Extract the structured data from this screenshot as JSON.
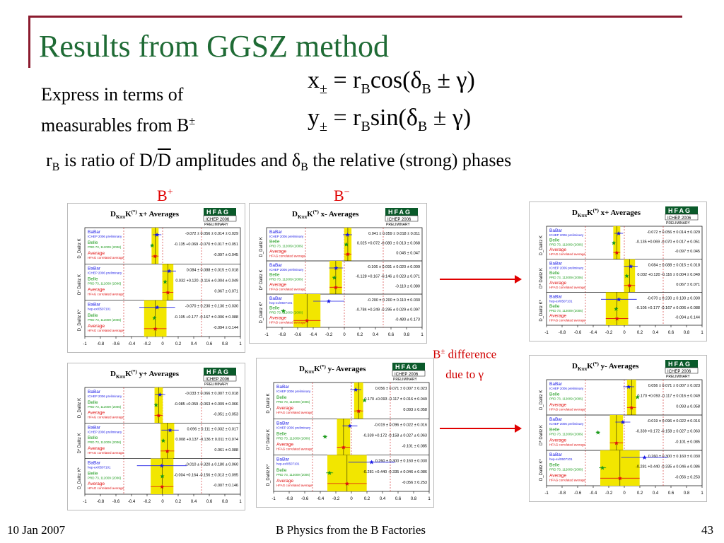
{
  "slide": {
    "title": "Results from GGSZ method",
    "eq_x": "x± = r_B cos(δ_B ± γ)",
    "eq_y": "y± = r_B sin(δ_B ± γ)",
    "express_line1": "Express in terms of",
    "express_line2": "measurables from B",
    "express_sup": "±",
    "ratio_r": "r",
    "ratio_sub_b": "B",
    "ratio_mid": " is ratio of D/",
    "ratio_dbar": "D",
    "ratio_mid2": " amplitudes and δ",
    "ratio_sub_b2": "B",
    "ratio_end": " the relative (strong) phases",
    "bplus_label": "B",
    "bplus_sup": "+",
    "bminus_label": "B",
    "bminus_sup": "−",
    "diff_line1": "B",
    "diff_sup": "±",
    "diff_line1_end": " difference",
    "diff_line2": "due to γ"
  },
  "footer": {
    "date": "10 Jan 2007",
    "center": "B Physics from the B Factories",
    "page": "43"
  },
  "colors": {
    "title_green": "#1f6b35",
    "rule_red": "#8b1b2e",
    "label_red": "#e00000",
    "band_yellow": "#f2e600",
    "babar_blue": "#1a1ae6",
    "belle_green": "#1a9a1a",
    "average_red": "#e01010"
  },
  "panels": [
    {
      "id": "xplus-top",
      "title": "x+ Averages",
      "rows": [
        {
          "mode": "D_Dalitz K",
          "babar": "-0.072 ± 0.056 ± 0.014 ± 0.029",
          "belle": "-0.135 +0.069 -0.070 ± 0.017 ± 0.051",
          "avg": "-0.097 ± 0.045"
        },
        {
          "mode": "D* Dalitz K",
          "babar": "0.084 ± 0.088 ± 0.015 ± 0.018",
          "belle": "0.032 +0.120 -0.116 ± 0.004 ± 0.049",
          "avg": "0.067 ± 0.071"
        },
        {
          "mode": "D_Dalitz K*",
          "babar": "-0.070 ± 0.230 ± 0.130 ± 0.030",
          "belle": "-0.105 +0.177 -0.167 ± 0.006 ± 0.088",
          "avg": "-0.094 ± 0.144"
        }
      ]
    },
    {
      "id": "xminus-top",
      "title": "x- Averages",
      "rows": [
        {
          "mode": "D_Dalitz K",
          "babar": "0.041 ± 0.059 ± 0.018 ± 0.011",
          "belle": "0.025 +0.072 -0.080 ± 0.013 ± 0.068",
          "avg": "0.045 ± 0.047"
        },
        {
          "mode": "D* Dalitz K",
          "babar": "-0.106 ± 0.091 ± 0.020 ± 0.009",
          "belle": "-0.128 +0.167 -0.146 ± 0.023 ± 0.071",
          "avg": "-0.110 ± 0.080"
        },
        {
          "mode": "D_Dalitz K*",
          "babar": "-0.200 ± 0.200 ± 0.110 ± 0.030",
          "belle": "-0.784 +0.249 -0.295 ± 0.029 ± 0.097",
          "avg": "-0.480 ± 0.173"
        }
      ]
    },
    {
      "id": "xplus-right",
      "title": "x+ Averages",
      "rows": [
        {
          "mode": "D_Dalitz K",
          "babar": "-0.072 ± 0.056 ± 0.014 ± 0.029",
          "belle": "-0.135 +0.069 -0.070 ± 0.017 ± 0.051",
          "avg": "-0.097 ± 0.045"
        },
        {
          "mode": "D* Dalitz K",
          "babar": "0.084 ± 0.088 ± 0.015 ± 0.018",
          "belle": "0.032 +0.120 -0.116 ± 0.004 ± 0.049",
          "avg": "0.067 ± 0.071"
        },
        {
          "mode": "D_Dalitz K*",
          "babar": "-0.070 ± 0.230 ± 0.130 ± 0.030",
          "belle": "-0.105 +0.177 -0.167 ± 0.006 ± 0.088",
          "avg": "-0.094 ± 0.144"
        }
      ]
    },
    {
      "id": "yplus-bottom",
      "title": "y+ Averages",
      "rows": [
        {
          "mode": "D_Dalitz K",
          "babar": "-0.033 ± 0.066 ± 0.007 ± 0.018",
          "belle": "-0.085 +0.059 -0.063 ± 0.009 ± 0.066",
          "avg": "-0.051 ± 0.053"
        },
        {
          "mode": "D* Dalitz K",
          "babar": "0.096 ± 0.111 ± 0.032 ± 0.017",
          "belle": "0.008 +0.137 -0.136 ± 0.011 ± 0.074",
          "avg": "0.061 ± 0.088"
        },
        {
          "mode": "D_Dalitz K*",
          "babar": "-0.010 ± 0.320 ± 0.180 ± 0.060",
          "belle": "-0.004 +0.164 -0.156 ± 0.013 ± 0.095",
          "avg": "-0.007 ± 0.146"
        }
      ]
    },
    {
      "id": "yminus-bottom",
      "title": "y- Averages",
      "rows": [
        {
          "mode": "D_Dalitz K",
          "babar": "0.056 ± 0.071 ± 0.007 ± 0.023",
          "belle": "0.170 +0.093 -0.117 ± 0.016 ± 0.049",
          "avg": "0.093 ± 0.058"
        },
        {
          "mode": "D* Dalitz K",
          "babar": "-0.019 ± 0.096 ± 0.022 ± 0.016",
          "belle": "-0.339 +0.172 -0.158 ± 0.027 ± 0.063",
          "avg": "-0.101 ± 0.085"
        },
        {
          "mode": "D_Dalitz K*",
          "babar": "0.260 ± 0.300 ± 0.160 ± 0.030",
          "belle": "-0.281 +0.440 -0.335 ± 0.046 ± 0.086",
          "avg": "-0.056 ± 0.253"
        }
      ]
    },
    {
      "id": "yminus-right",
      "title": "y- Averages",
      "rows": [
        {
          "mode": "D_Dalitz K",
          "babar": "0.056 ± 0.071 ± 0.007 ± 0.023",
          "belle": "0.170 +0.093 -0.117 ± 0.016 ± 0.049",
          "avg": "0.093 ± 0.058"
        },
        {
          "mode": "D* Dalitz K",
          "babar": "-0.019 ± 0.096 ± 0.022 ± 0.016",
          "belle": "-0.339 +0.172 -0.158 ± 0.027 ± 0.063",
          "avg": "-0.101 ± 0.085"
        },
        {
          "mode": "D_Dalitz K*",
          "babar": "0.260 ± 0.300 ± 0.160 ± 0.030",
          "belle": "-0.281 +0.440 -0.335 ± 0.046 ± 0.086",
          "avg": "-0.056 ± 0.253"
        }
      ]
    }
  ],
  "panel_text": {
    "babar": "BaBar",
    "belle": "Belle",
    "average": "Average",
    "babar_ref": "ICHEP 2006 preliminary",
    "babar_ref_kstar": "hep-ex/0507101",
    "belle_ref": "PRD 73, 112009 (2006)",
    "avg_ref": "HFAG correlated average",
    "hfag": "HFAG",
    "hfag_sub": "ICHEP 2006",
    "hfag_prelim": "PRELIMINARY",
    "title_prefix": "D",
    "title_kpp": "Kππ",
    "title_k": "K",
    "title_star": "(*)",
    "axis_ticks": [
      "-1",
      "-0.8",
      "-0.6",
      "-0.4",
      "-0.2",
      "0",
      "0.2",
      "0.4",
      "0.6",
      "0.8",
      "1"
    ]
  }
}
